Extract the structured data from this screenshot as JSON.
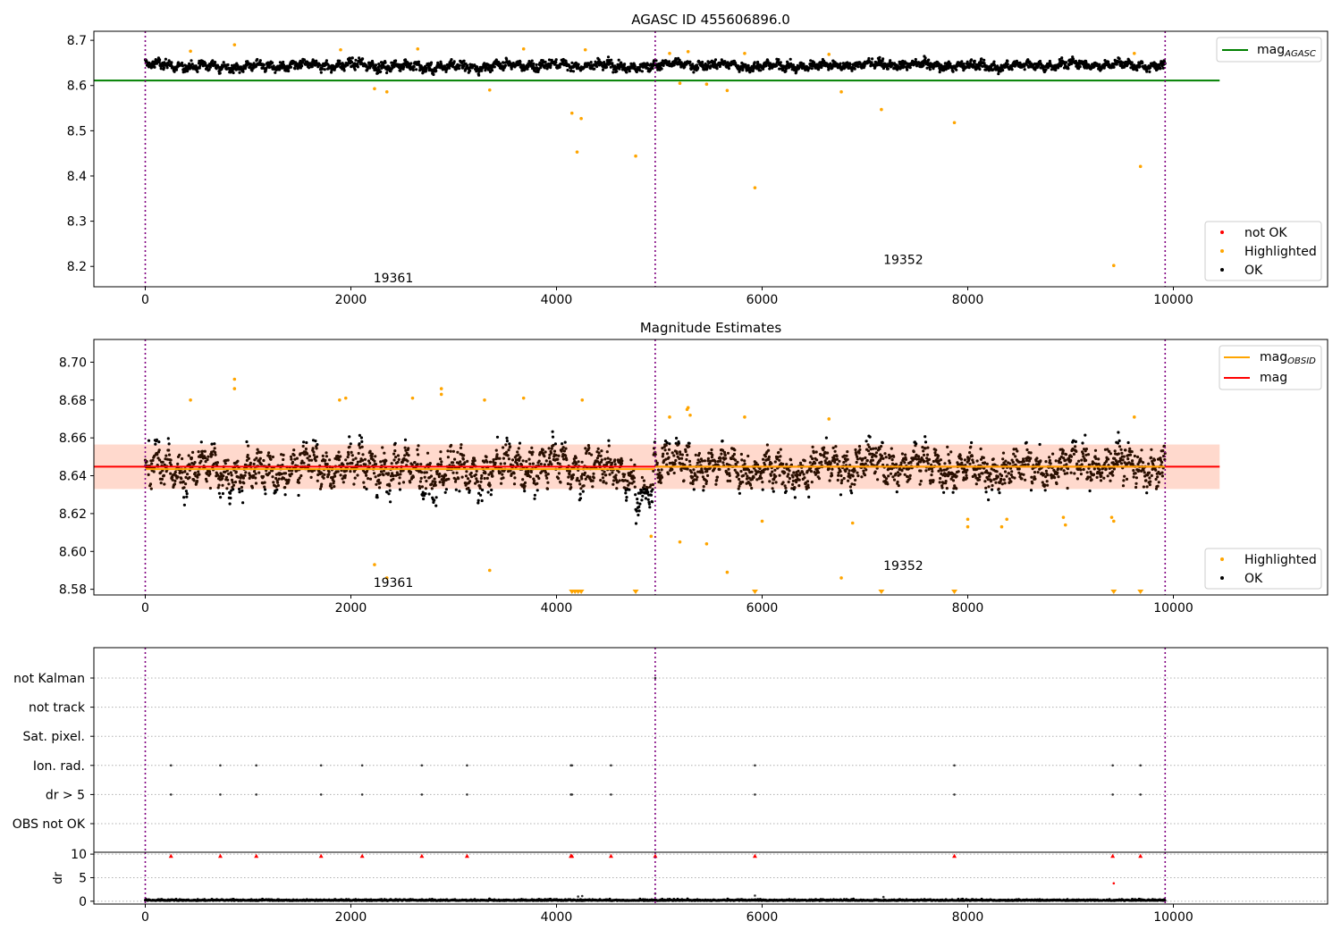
{
  "chart_data": [
    {
      "type": "scatter",
      "title": "AGASC ID 455606896.0",
      "xlim": [
        -500,
        11500
      ],
      "ylim": [
        8.155,
        8.72
      ],
      "xticks": [
        0,
        2000,
        4000,
        6000,
        8000,
        10000
      ],
      "xtick_labels": [
        "0",
        "2000",
        "4000",
        "6000",
        "8000",
        "10000"
      ],
      "yticks": [
        8.2,
        8.3,
        8.4,
        8.5,
        8.6,
        8.7
      ],
      "ytick_labels": [
        "8.2",
        "8.3",
        "8.4",
        "8.5",
        "8.6",
        "8.7"
      ],
      "obsid_boundaries": [
        0,
        4960,
        9920
      ],
      "obsid_labels": [
        {
          "text": "19361",
          "x": 2480,
          "y": 8.175
        },
        {
          "text": "19352",
          "x": 7440,
          "y": 8.215
        }
      ],
      "mag_agasc_level": 8.611,
      "mag_agasc_line_range": [
        -500,
        10450
      ],
      "ok_band": [
        {
          "x_start": 0,
          "x_end": 4960,
          "center": 8.643,
          "halfwidth": 0.013
        },
        {
          "x_start": 4960,
          "x_end": 9920,
          "center": 8.645,
          "halfwidth": 0.011
        }
      ],
      "highlighted_points": [
        [
          868,
          8.69
        ],
        [
          2230,
          8.593
        ],
        [
          2350,
          8.586
        ],
        [
          3350,
          8.59
        ],
        [
          4150,
          8.539
        ],
        [
          4200,
          8.453
        ],
        [
          4240,
          8.527
        ],
        [
          4770,
          8.444
        ],
        [
          5200,
          8.605
        ],
        [
          5460,
          8.603
        ],
        [
          5660,
          8.589
        ],
        [
          5930,
          8.374
        ],
        [
          6770,
          8.586
        ],
        [
          7160,
          8.547
        ],
        [
          7870,
          8.518
        ],
        [
          9420,
          8.202
        ],
        [
          9680,
          8.421
        ],
        [
          440,
          8.676
        ],
        [
          1900,
          8.679
        ],
        [
          2650,
          8.681
        ],
        [
          3680,
          8.681
        ],
        [
          4280,
          8.679
        ],
        [
          5100,
          8.671
        ],
        [
          5280,
          8.675
        ],
        [
          5830,
          8.671
        ],
        [
          6650,
          8.669
        ],
        [
          9620,
          8.671
        ]
      ],
      "legend": {
        "position": "lower-right",
        "entries": [
          {
            "label": "not OK",
            "color": "#ff0000",
            "marker": "dot"
          },
          {
            "label": "Highlighted",
            "color": "#ffa500",
            "marker": "dot"
          },
          {
            "label": "OK",
            "color": "#000000",
            "marker": "dot"
          }
        ]
      },
      "legend2": {
        "position": "upper-right",
        "entries": [
          {
            "label": "mag",
            "subscript": "AGASC",
            "color": "#008000",
            "marker": "line"
          }
        ]
      }
    },
    {
      "type": "scatter",
      "title": "Magnitude Estimates",
      "xlim": [
        -500,
        11500
      ],
      "ylim": [
        8.577,
        8.712
      ],
      "xticks": [
        0,
        2000,
        4000,
        6000,
        8000,
        10000
      ],
      "xtick_labels": [
        "0",
        "2000",
        "4000",
        "6000",
        "8000",
        "10000"
      ],
      "yticks": [
        8.58,
        8.6,
        8.62,
        8.64,
        8.66,
        8.68,
        8.7
      ],
      "ytick_labels": [
        "8.58",
        "8.60",
        "8.62",
        "8.64",
        "8.66",
        "8.68",
        "8.70"
      ],
      "obsid_boundaries": [
        0,
        4960,
        9920
      ],
      "obsid_labels": [
        {
          "text": "19361",
          "x": 2480,
          "y": 8.5835
        },
        {
          "text": "19352",
          "x": 7440,
          "y": 8.5925
        }
      ],
      "mag_level": 8.6448,
      "mag_band": [
        8.633,
        8.6565
      ],
      "mag_line_range": [
        -500,
        10450
      ],
      "mag_obsid_segments": [
        {
          "x_start": 0,
          "x_end": 4960,
          "level": 8.6435
        },
        {
          "x_start": 4960,
          "x_end": 9920,
          "level": 8.6448
        }
      ],
      "highlighted_points": [
        [
          440,
          8.68
        ],
        [
          868,
          8.691
        ],
        [
          868,
          8.686
        ],
        [
          1890,
          8.68
        ],
        [
          1950,
          8.681
        ],
        [
          2230,
          8.593
        ],
        [
          2350,
          8.586
        ],
        [
          2600,
          8.681
        ],
        [
          2880,
          8.686
        ],
        [
          2880,
          8.683
        ],
        [
          3300,
          8.68
        ],
        [
          3350,
          8.59
        ],
        [
          3680,
          8.681
        ],
        [
          4250,
          8.68
        ],
        [
          4920,
          8.608
        ],
        [
          5100,
          8.671
        ],
        [
          5200,
          8.605
        ],
        [
          5270,
          8.675
        ],
        [
          5280,
          8.676
        ],
        [
          5300,
          8.672
        ],
        [
          5460,
          8.604
        ],
        [
          5660,
          8.589
        ],
        [
          5830,
          8.671
        ],
        [
          6000,
          8.616
        ],
        [
          6650,
          8.67
        ],
        [
          6770,
          8.586
        ],
        [
          6880,
          8.615
        ],
        [
          8000,
          8.617
        ],
        [
          8000,
          8.613
        ],
        [
          8330,
          8.613
        ],
        [
          8380,
          8.617
        ],
        [
          8930,
          8.618
        ],
        [
          8950,
          8.614
        ],
        [
          9400,
          8.618
        ],
        [
          9420,
          8.616
        ],
        [
          9620,
          8.671
        ]
      ],
      "clipped_highlighted_x": [
        4150,
        4180,
        4210,
        4240,
        4770,
        5930,
        7160,
        7870,
        9420,
        9680
      ],
      "legend": {
        "position": "lower-right",
        "entries": [
          {
            "label": "Highlighted",
            "color": "#ffa500",
            "marker": "dot"
          },
          {
            "label": "OK",
            "color": "#000000",
            "marker": "dot"
          }
        ]
      },
      "legend2": {
        "position": "upper-right",
        "entries": [
          {
            "label": "mag",
            "subscript": "OBSID",
            "color": "#ffa500",
            "marker": "line"
          },
          {
            "label": "mag",
            "subscript": "",
            "color": "#ff0000",
            "marker": "line"
          }
        ]
      }
    },
    {
      "type": "scatter",
      "title": "",
      "xlim": [
        -500,
        11500
      ],
      "xticks": [
        0,
        2000,
        4000,
        6000,
        8000,
        10000
      ],
      "xtick_labels": [
        "0",
        "2000",
        "4000",
        "6000",
        "8000",
        "10000"
      ],
      "obsid_boundaries": [
        0,
        4960,
        9920
      ],
      "flag_rows": [
        "not Kalman",
        "not track",
        "Sat. pixel.",
        "Ion. rad.",
        "dr > 5",
        "OBS not OK"
      ],
      "flag_points": {
        "not Kalman": [
          4960
        ],
        "not track": [],
        "Sat. pixel.": [],
        "Ion. rad.": [
          250,
          730,
          1080,
          1710,
          2110,
          2690,
          3130,
          4140,
          4150,
          4530,
          5930,
          7870,
          9410,
          9680
        ],
        "dr > 5": [
          250,
          730,
          1080,
          1710,
          2110,
          2690,
          3130,
          4140,
          4150,
          4530,
          5930,
          7870,
          9410,
          9680
        ],
        "OBS not OK": []
      },
      "dr_ylabel": "dr",
      "dr_ylim": [
        -0.6,
        10.4
      ],
      "dr_yticks": [
        0,
        5,
        10
      ],
      "dr_ytick_labels": [
        "0",
        "5",
        "10"
      ],
      "dr_clipped_x": [
        250,
        730,
        1080,
        1710,
        2110,
        2690,
        3130,
        4140,
        4150,
        4530,
        4960,
        5930,
        7870,
        9410,
        9680
      ],
      "dr_outliers": [
        [
          9420,
          3.8
        ],
        [
          4960,
          1.6
        ],
        [
          5930,
          1.2
        ],
        [
          4210,
          1.0
        ],
        [
          4250,
          1.1
        ],
        [
          7180,
          0.9
        ]
      ]
    }
  ],
  "colors": {
    "ok": "#000000",
    "ok_dense": "#2a0f00",
    "highlighted": "#ffa500",
    "not_ok": "#ff0000",
    "mag_agasc": "#008000",
    "mag": "#ff0000",
    "mag_obsid": "#ffa500",
    "mag_band": "#ffcfc0",
    "boundary": "#800080",
    "grid": "#b0b0b0"
  }
}
